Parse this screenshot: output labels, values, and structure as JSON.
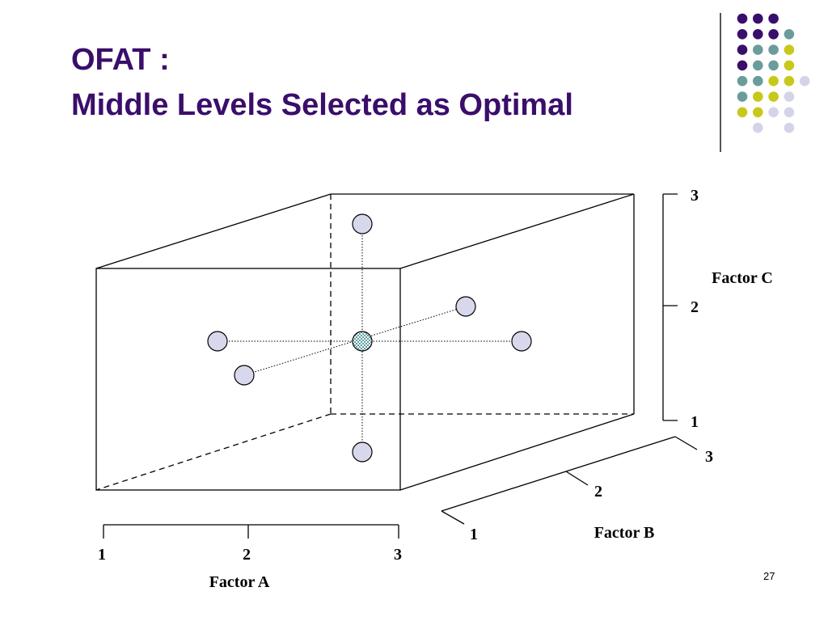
{
  "slide": {
    "title_line1": "OFAT :",
    "title_line2": "Middle Levels Selected as Optimal",
    "page_number": "27"
  },
  "colors": {
    "title": "#3a0e6b",
    "point_fill": "#d8d8ec",
    "center_checker_a": "#5f9ea0",
    "center_checker_b": "#ffffff",
    "deco_purple": "#3a0e6b",
    "deco_teal": "#6a9c9c",
    "deco_yellow": "#c8c81a",
    "deco_lavender": "#d4d4e8"
  },
  "decor_dots": [
    [
      "purple",
      "purple",
      "purple",
      null,
      null
    ],
    [
      "purple",
      "purple",
      "purple",
      "teal",
      null
    ],
    [
      "purple",
      "teal",
      "teal",
      "yellow",
      null
    ],
    [
      "purple",
      "teal",
      "teal",
      "yellow",
      null
    ],
    [
      "teal",
      "teal",
      "yellow",
      "yellow",
      "lavender"
    ],
    [
      "teal",
      "yellow",
      "yellow",
      "lavender",
      null
    ],
    [
      "yellow",
      "yellow",
      "lavender",
      "lavender",
      null
    ],
    [
      null,
      "lavender",
      null,
      "lavender",
      null
    ]
  ],
  "axes": {
    "factor_a": {
      "label": "Factor A",
      "ticks": [
        "1",
        "2",
        "3"
      ]
    },
    "factor_b": {
      "label": "Factor B",
      "ticks": [
        "1",
        "2",
        "3"
      ]
    },
    "factor_c": {
      "label": "Factor C",
      "ticks": [
        "1",
        "2",
        "3"
      ]
    }
  }
}
